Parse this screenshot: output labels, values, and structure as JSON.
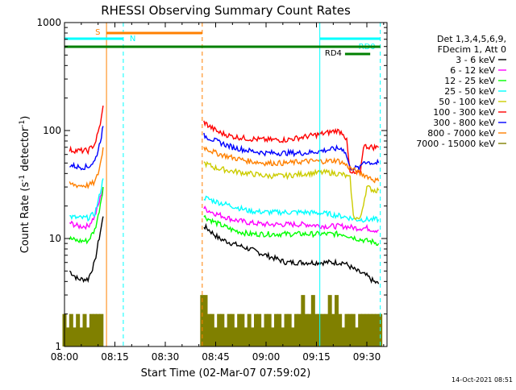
{
  "chart_data": {
    "type": "line",
    "title": "RHESSI Observing Summary Count Rates",
    "xlabel": "Start Time (02-Mar-07 07:59:02)",
    "ylabel_main": "Count Rate (s",
    "ylabel_sup1": "-1",
    "ylabel_mid": " detector",
    "ylabel_sup2": "-1",
    "ylabel_end": ")",
    "y_scale": "log",
    "ylim": [
      1,
      1000
    ],
    "x_unit": "minutes after 08:00",
    "xlim": [
      0,
      96
    ],
    "x_ticks": [
      {
        "t": 0,
        "label": "08:00"
      },
      {
        "t": 15,
        "label": "08:15"
      },
      {
        "t": 30,
        "label": "08:30"
      },
      {
        "t": 45,
        "label": "08:45"
      },
      {
        "t": 60,
        "label": "09:00"
      },
      {
        "t": 75,
        "label": "09:15"
      },
      {
        "t": 90,
        "label": "09:30"
      }
    ],
    "y_ticks": [
      {
        "v": 1,
        "label": "1"
      },
      {
        "v": 10,
        "label": "10"
      },
      {
        "v": 100,
        "label": "100"
      },
      {
        "v": 1000,
        "label": "1000"
      }
    ],
    "legend_header": [
      "Det 1,3,4,5,6,9,",
      "FDecim 1, Att 0"
    ],
    "legend_position": "right",
    "series": [
      {
        "name": "3 - 6 keV",
        "color": "#000000",
        "segments": [
          [
            [
              1.5,
              5
            ],
            [
              4,
              4.2
            ],
            [
              7,
              4.2
            ],
            [
              9,
              6
            ],
            [
              10,
              9
            ],
            [
              11,
              13
            ],
            [
              11.5,
              16
            ]
          ],
          [
            [
              41.5,
              13
            ],
            [
              43,
              12
            ],
            [
              46,
              10
            ],
            [
              50,
              9
            ],
            [
              55,
              8
            ],
            [
              60,
              7
            ],
            [
              66,
              6
            ],
            [
              72,
              6
            ],
            [
              78,
              6
            ],
            [
              83,
              6
            ],
            [
              87,
              5
            ],
            [
              90,
              4.5
            ],
            [
              92,
              4
            ],
            [
              93.5,
              3.8
            ]
          ]
        ]
      },
      {
        "name": "6 - 12 keV",
        "color": "#ff00ff",
        "segments": [
          [
            [
              1.5,
              14
            ],
            [
              4,
              13
            ],
            [
              7,
              13
            ],
            [
              9,
              16
            ],
            [
              10,
              20
            ],
            [
              11,
              26
            ],
            [
              11.5,
              30
            ]
          ],
          [
            [
              41.5,
              19
            ],
            [
              45,
              17
            ],
            [
              50,
              15
            ],
            [
              55,
              14
            ],
            [
              60,
              13.5
            ],
            [
              66,
              13.5
            ],
            [
              72,
              13.5
            ],
            [
              78,
              13
            ],
            [
              83,
              13
            ],
            [
              87,
              12.5
            ],
            [
              90,
              12.5
            ],
            [
              92,
              12
            ],
            [
              93.5,
              12
            ]
          ]
        ]
      },
      {
        "name": "12 - 25 keV",
        "color": "#00ff00",
        "segments": [
          [
            [
              1.5,
              10
            ],
            [
              4,
              9.5
            ],
            [
              7,
              9.5
            ],
            [
              9,
              12
            ],
            [
              10,
              16
            ],
            [
              11,
              24
            ],
            [
              11.5,
              30
            ]
          ],
          [
            [
              41.5,
              16
            ],
            [
              45,
              14
            ],
            [
              50,
              12
            ],
            [
              55,
              11
            ],
            [
              60,
              11
            ],
            [
              66,
              11
            ],
            [
              72,
              11
            ],
            [
              78,
              11
            ],
            [
              83,
              11
            ],
            [
              87,
              10
            ],
            [
              90,
              9.5
            ],
            [
              92,
              9.3
            ],
            [
              93.5,
              9
            ]
          ]
        ]
      },
      {
        "name": "25 - 50 keV",
        "color": "#00ffff",
        "segments": [
          [
            [
              1.5,
              16
            ],
            [
              4,
              15.5
            ],
            [
              7,
              15.5
            ],
            [
              9,
              17
            ],
            [
              10,
              22
            ],
            [
              11,
              30
            ],
            [
              11.5,
              36
            ]
          ],
          [
            [
              41.5,
              24
            ],
            [
              45,
              22
            ],
            [
              50,
              20
            ],
            [
              55,
              18
            ],
            [
              60,
              17.5
            ],
            [
              66,
              17.5
            ],
            [
              72,
              17.5
            ],
            [
              78,
              17
            ],
            [
              83,
              16
            ],
            [
              87,
              15
            ],
            [
              90,
              15
            ],
            [
              92,
              15
            ],
            [
              93.5,
              15
            ]
          ]
        ]
      },
      {
        "name": "50 - 100 keV",
        "color": "#cccc00",
        "segments": [
          [
            [
              41.5,
              50
            ],
            [
              45,
              45
            ],
            [
              50,
              42
            ],
            [
              55,
              40
            ],
            [
              60,
              38
            ],
            [
              66,
              38
            ],
            [
              72,
              40
            ],
            [
              78,
              41
            ],
            [
              81,
              40
            ],
            [
              83,
              39
            ],
            [
              85,
              36
            ],
            [
              86,
              16
            ],
            [
              88,
              15
            ],
            [
              90,
              30
            ],
            [
              92,
              28
            ],
            [
              93.5,
              28
            ]
          ]
        ]
      },
      {
        "name": "100 - 300 keV",
        "color": "#ff0000",
        "segments": [
          [
            [
              1.5,
              66
            ],
            [
              4,
              65
            ],
            [
              7,
              65
            ],
            [
              9,
              75
            ],
            [
              10,
              95
            ],
            [
              11,
              130
            ],
            [
              11.5,
              170
            ]
          ],
          [
            [
              41.5,
              120
            ],
            [
              43,
              110
            ],
            [
              46,
              96
            ],
            [
              50,
              88
            ],
            [
              55,
              84
            ],
            [
              60,
              82
            ],
            [
              66,
              82
            ],
            [
              72,
              88
            ],
            [
              78,
              95
            ],
            [
              81,
              100
            ],
            [
              83,
              95
            ],
            [
              84,
              80
            ],
            [
              85,
              40
            ],
            [
              88,
              40
            ],
            [
              89,
              72
            ],
            [
              92,
              70
            ],
            [
              93.5,
              70
            ]
          ]
        ]
      },
      {
        "name": "300 - 800 keV",
        "color": "#0000ff",
        "segments": [
          [
            [
              1.5,
              48
            ],
            [
              4,
              46
            ],
            [
              7,
              46
            ],
            [
              9,
              52
            ],
            [
              10,
              66
            ],
            [
              11,
              90
            ],
            [
              11.5,
              110
            ]
          ],
          [
            [
              41.5,
              90
            ],
            [
              45,
              80
            ],
            [
              50,
              70
            ],
            [
              55,
              65
            ],
            [
              60,
              62
            ],
            [
              66,
              62
            ],
            [
              72,
              62
            ],
            [
              78,
              66
            ],
            [
              81,
              68
            ],
            [
              83,
              68
            ],
            [
              84,
              58
            ],
            [
              85,
              45
            ],
            [
              88,
              45
            ],
            [
              89,
              52
            ],
            [
              92,
              50
            ],
            [
              93.5,
              50
            ]
          ]
        ]
      },
      {
        "name": "800 - 7000 keV",
        "color": "#ff8000",
        "segments": [
          [
            [
              1.5,
              32
            ],
            [
              4,
              31
            ],
            [
              7,
              31
            ],
            [
              9,
              33
            ],
            [
              10,
              40
            ],
            [
              11,
              55
            ],
            [
              11.5,
              70
            ]
          ],
          [
            [
              41.5,
              70
            ],
            [
              45,
              62
            ],
            [
              50,
              56
            ],
            [
              55,
              52
            ],
            [
              60,
              50
            ],
            [
              66,
              50
            ],
            [
              72,
              52
            ],
            [
              78,
              52
            ],
            [
              81,
              53
            ],
            [
              83,
              50
            ],
            [
              85,
              45
            ],
            [
              88,
              40
            ],
            [
              90,
              38
            ],
            [
              92,
              35
            ],
            [
              93.5,
              34
            ]
          ]
        ]
      },
      {
        "name": "7000 - 15000 keV",
        "color": "#808000",
        "style": "bars",
        "segments": [
          [
            [
              0,
              2
            ],
            [
              1,
              1.5
            ],
            [
              2,
              2
            ],
            [
              3,
              1.5
            ],
            [
              4,
              2
            ],
            [
              5,
              1.5
            ],
            [
              6,
              2
            ],
            [
              7,
              1.5
            ],
            [
              8,
              2
            ],
            [
              9,
              2
            ],
            [
              10,
              2
            ],
            [
              11,
              2
            ]
          ],
          [
            [
              41,
              3
            ],
            [
              42,
              3
            ],
            [
              43,
              2
            ],
            [
              44,
              2
            ],
            [
              45,
              1.5
            ],
            [
              46,
              2
            ],
            [
              47,
              2
            ],
            [
              48,
              1.5
            ],
            [
              49,
              2
            ],
            [
              50,
              2
            ],
            [
              51,
              1.5
            ],
            [
              52,
              2
            ],
            [
              53,
              2
            ],
            [
              54,
              1.5
            ],
            [
              55,
              2
            ],
            [
              56,
              1.5
            ],
            [
              57,
              2
            ],
            [
              58,
              2
            ],
            [
              59,
              1.5
            ],
            [
              60,
              2
            ],
            [
              61,
              2
            ],
            [
              62,
              1.5
            ],
            [
              63,
              2
            ],
            [
              64,
              2
            ],
            [
              65,
              1.5
            ],
            [
              66,
              2
            ],
            [
              67,
              2
            ],
            [
              68,
              1.5
            ],
            [
              69,
              2
            ],
            [
              70,
              2
            ],
            [
              71,
              3
            ],
            [
              72,
              2
            ],
            [
              73,
              2
            ],
            [
              74,
              3
            ],
            [
              75,
              2
            ],
            [
              76,
              2
            ],
            [
              77,
              2
            ],
            [
              78,
              2
            ],
            [
              79,
              3
            ],
            [
              80,
              2
            ],
            [
              81,
              3
            ],
            [
              82,
              2
            ],
            [
              83,
              1.5
            ],
            [
              84,
              2
            ],
            [
              85,
              2
            ],
            [
              86,
              2
            ],
            [
              87,
              1.5
            ],
            [
              88,
              2
            ],
            [
              89,
              2
            ],
            [
              90,
              2
            ],
            [
              91,
              2
            ],
            [
              92,
              2
            ],
            [
              93,
              2
            ],
            [
              94,
              2
            ]
          ]
        ]
      }
    ],
    "flags": [
      {
        "label": "S",
        "color": "#ff8000",
        "t0": 12.5,
        "t1": 41
      },
      {
        "label": "N",
        "color": "#00ffff",
        "t0": 0,
        "t1": 17.5
      },
      {
        "label": "RD0",
        "color": "#00ffff",
        "t0": 76,
        "t1": 94
      },
      {
        "label": "RD4",
        "color": "#008000",
        "t0": 83.5,
        "t1": 91
      },
      {
        "label": "",
        "color": "#008000",
        "t0": 0,
        "t1": 94
      }
    ],
    "vertical_lines": [
      {
        "t": 0,
        "color": "#00ffff",
        "style": "solid"
      },
      {
        "t": 12.5,
        "color": "#ff8000",
        "style": "solid"
      },
      {
        "t": 17.5,
        "color": "#00ffff",
        "style": "dashed"
      },
      {
        "t": 41,
        "color": "#ff8000",
        "style": "dashed"
      },
      {
        "t": 76,
        "color": "#00ffff",
        "style": "solid"
      },
      {
        "t": 94,
        "color": "#00ffff",
        "style": "dashed"
      }
    ]
  },
  "footer": {
    "timestamp": "14-Oct-2021 08:51"
  }
}
